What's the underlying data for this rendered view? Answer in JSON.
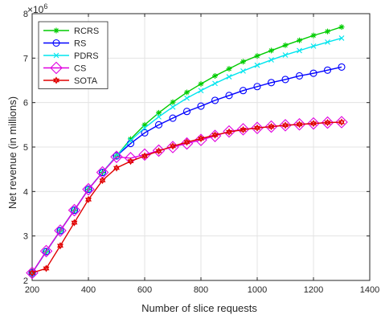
{
  "chart_data": {
    "type": "line",
    "title": "",
    "xlabel": "Number of slice requests",
    "ylabel": "Net revenue (in millions)",
    "y_exponent_label": "×10",
    "y_exponent_power": "6",
    "xlim": [
      200,
      1400
    ],
    "ylim": [
      2,
      8
    ],
    "xticks": [
      200,
      400,
      600,
      800,
      1000,
      1200,
      1400
    ],
    "yticks": [
      2,
      3,
      4,
      5,
      6,
      7,
      8
    ],
    "grid": true,
    "legend_position": "top-left",
    "x": [
      200,
      250,
      300,
      350,
      400,
      450,
      500,
      550,
      600,
      650,
      700,
      750,
      800,
      850,
      900,
      950,
      1000,
      1050,
      1100,
      1150,
      1200,
      1250,
      1300
    ],
    "series": [
      {
        "name": "RCRS",
        "color": "#00cc00",
        "marker": "asterisk",
        "values": [
          2.17,
          2.65,
          3.12,
          3.58,
          4.05,
          4.43,
          4.8,
          5.18,
          5.5,
          5.77,
          6.01,
          6.23,
          6.42,
          6.6,
          6.76,
          6.92,
          7.05,
          7.17,
          7.29,
          7.4,
          7.51,
          7.6,
          7.7
        ]
      },
      {
        "name": "RS",
        "color": "#0000ff",
        "marker": "circle",
        "values": [
          2.17,
          2.65,
          3.12,
          3.58,
          4.05,
          4.43,
          4.8,
          5.08,
          5.32,
          5.5,
          5.65,
          5.8,
          5.92,
          6.05,
          6.16,
          6.27,
          6.36,
          6.45,
          6.52,
          6.6,
          6.66,
          6.73,
          6.8
        ]
      },
      {
        "name": "PDRS",
        "color": "#00e5ee",
        "marker": "x",
        "values": [
          2.17,
          2.65,
          3.12,
          3.58,
          4.05,
          4.43,
          4.8,
          5.15,
          5.43,
          5.68,
          5.9,
          6.1,
          6.27,
          6.43,
          6.58,
          6.71,
          6.84,
          6.96,
          7.07,
          7.17,
          7.27,
          7.36,
          7.45
        ]
      },
      {
        "name": "CS",
        "color": "#e000e0",
        "marker": "diamond",
        "values": [
          2.17,
          2.66,
          3.12,
          3.58,
          4.05,
          4.43,
          4.78,
          4.75,
          4.83,
          4.92,
          5.0,
          5.08,
          5.16,
          5.25,
          5.35,
          5.4,
          5.43,
          5.46,
          5.49,
          5.51,
          5.53,
          5.55,
          5.56
        ]
      },
      {
        "name": "SOTA",
        "color": "#e00000",
        "marker": "hexagram",
        "values": [
          2.17,
          2.27,
          2.78,
          3.3,
          3.82,
          4.25,
          4.53,
          4.68,
          4.8,
          4.91,
          5.02,
          5.11,
          5.19,
          5.27,
          5.34,
          5.39,
          5.43,
          5.46,
          5.49,
          5.51,
          5.53,
          5.55,
          5.56
        ]
      }
    ]
  }
}
